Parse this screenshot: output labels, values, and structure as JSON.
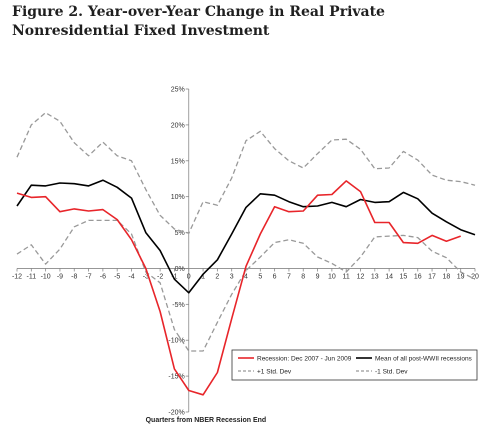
{
  "title": "Figure 2. Year-over-Year Change in Real Private Nonresidential Fixed Investment",
  "chart_data": {
    "type": "line",
    "title": "Figure 2. Year-over-Year Change in Real Private Nonresidential Fixed Investment",
    "xlabel": "Quarters from NBER Recession End",
    "ylabel": "",
    "x": [
      -12,
      -11,
      -10,
      -9,
      -8,
      -7,
      -6,
      -5,
      -4,
      -3,
      -2,
      -1,
      0,
      1,
      2,
      3,
      4,
      5,
      6,
      7,
      8,
      9,
      10,
      11,
      12,
      13,
      14,
      15,
      16,
      17,
      18,
      19,
      20
    ],
    "x_tick_labels": [
      "-12",
      "-11",
      "-10",
      "-9",
      "-8",
      "-7",
      "-6",
      "-5",
      "-4",
      "-3",
      "-2",
      "-1",
      "0",
      "1",
      "2",
      "3",
      "4",
      "5",
      "6",
      "7",
      "8",
      "9",
      "10",
      "11",
      "12",
      "13",
      "14",
      "15",
      "16",
      "17",
      "18",
      "19",
      "20"
    ],
    "y_tick_values": [
      -20,
      -15,
      -10,
      -5,
      0,
      5,
      10,
      15,
      20,
      25
    ],
    "y_tick_labels": [
      "-20%",
      "-15%",
      "-10%",
      "-5%",
      "0%",
      "5%",
      "10%",
      "15%",
      "20%",
      "25%"
    ],
    "ylim": [
      -20,
      25
    ],
    "xlim": [
      -12,
      20
    ],
    "grid": false,
    "legend_position": "bottom-inside",
    "series": [
      {
        "name": "Recession: Dec 2007 - Jun 2009",
        "color": "#e8252a",
        "style": "solid",
        "values": [
          10.5,
          9.9,
          10.0,
          7.9,
          8.3,
          8.0,
          8.2,
          6.8,
          4.0,
          0.0,
          -6.0,
          -14.0,
          -17.0,
          -17.6,
          -14.5,
          -7.0,
          0.3,
          4.8,
          8.6,
          7.9,
          8.0,
          10.2,
          10.3,
          12.2,
          10.7,
          6.4,
          6.4,
          3.6,
          3.5,
          4.6,
          3.8,
          4.5,
          null
        ]
      },
      {
        "name": "Mean of all post-WWII recessions",
        "color": "#000000",
        "style": "solid",
        "values": [
          8.7,
          11.6,
          11.5,
          11.9,
          11.8,
          11.5,
          12.3,
          11.3,
          9.8,
          5.0,
          2.5,
          -1.5,
          -3.4,
          -0.8,
          1.2,
          4.8,
          8.5,
          10.4,
          10.2,
          9.3,
          8.6,
          8.7,
          9.2,
          8.6,
          9.6,
          9.2,
          9.3,
          10.6,
          9.7,
          7.7,
          6.5,
          5.4,
          4.7
        ]
      },
      {
        "name": "+1 Std. Dev",
        "color": "#999999",
        "style": "dashed",
        "values": [
          15.5,
          20.0,
          21.7,
          20.5,
          17.5,
          15.7,
          17.6,
          15.7,
          15.0,
          11.0,
          7.4,
          5.5,
          4.9,
          9.3,
          8.8,
          12.6,
          17.8,
          19.1,
          16.7,
          15.0,
          14.0,
          16.0,
          17.9,
          18.0,
          16.6,
          13.9,
          14.0,
          16.3,
          15.1,
          13.0,
          12.3,
          12.1,
          11.6
        ]
      },
      {
        "name": "-1 Std. Dev",
        "color": "#999999",
        "style": "dashed",
        "values": [
          2.0,
          3.3,
          0.6,
          2.7,
          5.8,
          6.7,
          6.7,
          6.7,
          4.8,
          -0.5,
          -2.0,
          -8.5,
          -11.5,
          -11.5,
          -7.5,
          -3.6,
          -0.3,
          1.6,
          3.6,
          4.0,
          3.5,
          1.6,
          0.7,
          -0.5,
          1.6,
          4.4,
          4.5,
          4.6,
          4.3,
          2.4,
          1.5,
          -0.5,
          -1.5
        ]
      }
    ]
  }
}
